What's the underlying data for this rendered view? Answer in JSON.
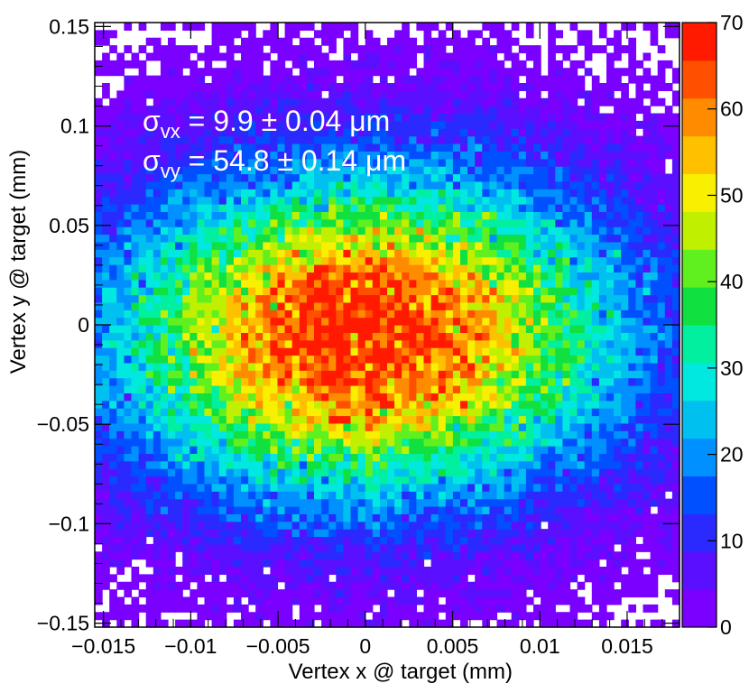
{
  "chart_data": {
    "type": "heatmap",
    "title": "",
    "xlabel": "Vertex x @ target (mm)",
    "ylabel": "Vertex y @ target (mm)",
    "xlim": [
      -0.0155,
      0.018
    ],
    "ylim": [
      -0.152,
      0.152
    ],
    "zlim": [
      0,
      70
    ],
    "x_ticks": [
      -0.015,
      -0.01,
      -0.005,
      0,
      0.005,
      0.01,
      0.015
    ],
    "x_tick_labels": [
      "−0.015",
      "−0.01",
      "−0.005",
      "0",
      "0.005",
      "0.01",
      "0.015"
    ],
    "y_ticks": [
      0.15,
      0.1,
      0.05,
      0,
      -0.05,
      -0.1,
      -0.15
    ],
    "y_tick_labels": [
      "0.15",
      "0.1",
      "0.05",
      "0",
      "−0.05",
      "−0.1",
      "−0.15"
    ],
    "z_ticks": [
      70,
      60,
      50,
      40,
      30,
      20,
      10,
      0
    ],
    "z_tick_labels": [
      "70",
      "60",
      "50",
      "40",
      "30",
      "20",
      "10",
      "0"
    ],
    "distribution": {
      "shape": "2D Gaussian",
      "x_mean": 0.0,
      "y_mean": -0.005,
      "x_sigma": 0.0099,
      "y_sigma": 0.0548,
      "peak": 70,
      "x_bins": 80,
      "y_bins": 80
    },
    "annotations": [
      {
        "symbol": "σ",
        "sub": "vx",
        "text": " =   9.9 ± 0.04 μm"
      },
      {
        "symbol": "σ",
        "sub": "vy",
        "text": " = 54.8 ± 0.14 μm"
      }
    ],
    "colors": {
      "palette": [
        "#7a00ff",
        "#5a10ff",
        "#2a2aff",
        "#0050ff",
        "#0090ff",
        "#00c0f0",
        "#00e8e0",
        "#00f0a0",
        "#10e040",
        "#60f020",
        "#c0f000",
        "#f8f000",
        "#ffc000",
        "#ff8c00",
        "#ff5000",
        "#ff1a00"
      ],
      "annotation_text": "#ffffff",
      "empty_bin": "#ffffff"
    }
  }
}
